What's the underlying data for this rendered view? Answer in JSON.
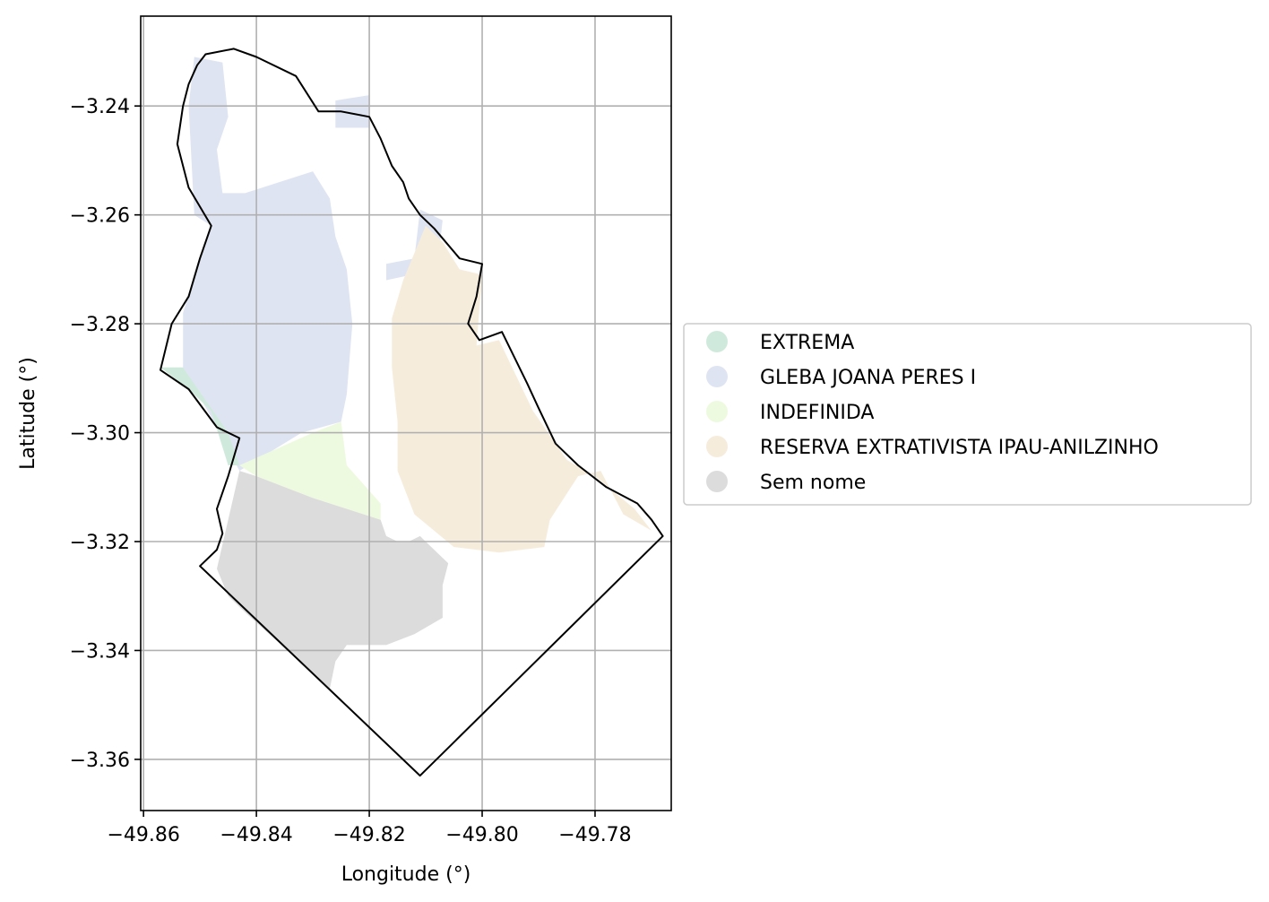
{
  "chart_data": {
    "type": "map",
    "xlabel": "Longitude (°)",
    "ylabel": "Latitude (°)",
    "xlim": [
      -49.8605,
      -49.7665
    ],
    "ylim": [
      -3.3694,
      -3.2235
    ],
    "xticks": [
      -49.86,
      -49.84,
      -49.82,
      -49.8,
      -49.78
    ],
    "xtick_labels": [
      "−49.86",
      "−49.84",
      "−49.82",
      "−49.80",
      "−49.78"
    ],
    "yticks": [
      -3.24,
      -3.26,
      -3.28,
      -3.3,
      -3.32,
      -3.34,
      -3.36
    ],
    "ytick_labels": [
      "−3.24",
      "−3.26",
      "−3.28",
      "−3.30",
      "−3.32",
      "−3.34",
      "−3.36"
    ],
    "grid": true,
    "legend_position": "center-right, outside plot",
    "categories": [
      {
        "name": "EXTREMA",
        "color": "#cfeadc"
      },
      {
        "name": "GLEBA JOANA PERES I",
        "color": "#dfe4f2"
      },
      {
        "name": "INDEFINIDA",
        "color": "#eefae0"
      },
      {
        "name": "RESERVA EXTRATIVISTA IPAU-ANILZINHO",
        "color": "#f6ecdc"
      },
      {
        "name": "Sem nome",
        "color": "#dcdcdc"
      }
    ],
    "regions": [
      {
        "category": "GLEBA JOANA PERES I",
        "coords": [
          [
            -49.851,
            -3.231
          ],
          [
            -49.846,
            -3.232
          ],
          [
            -49.845,
            -3.242
          ],
          [
            -49.847,
            -3.248
          ],
          [
            -49.846,
            -3.256
          ],
          [
            -49.842,
            -3.256
          ],
          [
            -49.83,
            -3.252
          ],
          [
            -49.827,
            -3.257
          ],
          [
            -49.826,
            -3.264
          ],
          [
            -49.824,
            -3.27
          ],
          [
            -49.823,
            -3.28
          ],
          [
            -49.824,
            -3.293
          ],
          [
            -49.825,
            -3.298
          ],
          [
            -49.832,
            -3.3
          ],
          [
            -49.843,
            -3.307
          ],
          [
            -49.847,
            -3.299
          ],
          [
            -49.853,
            -3.288
          ],
          [
            -49.853,
            -3.278
          ],
          [
            -49.85,
            -3.268
          ],
          [
            -49.848,
            -3.262
          ],
          [
            -49.851,
            -3.26
          ],
          [
            -49.852,
            -3.24
          ]
        ]
      },
      {
        "category": "GLEBA JOANA PERES I",
        "coords": [
          [
            -49.826,
            -3.239
          ],
          [
            -49.82,
            -3.238
          ],
          [
            -49.82,
            -3.244
          ],
          [
            -49.826,
            -3.244
          ]
        ]
      },
      {
        "category": "GLEBA JOANA PERES I",
        "coords": [
          [
            -49.811,
            -3.259
          ],
          [
            -49.807,
            -3.261
          ],
          [
            -49.808,
            -3.27
          ],
          [
            -49.817,
            -3.272
          ],
          [
            -49.817,
            -3.269
          ],
          [
            -49.812,
            -3.268
          ]
        ]
      },
      {
        "category": "EXTREMA",
        "coords": [
          [
            -49.857,
            -3.288
          ],
          [
            -49.853,
            -3.288
          ],
          [
            -49.845,
            -3.3
          ],
          [
            -49.843,
            -3.306
          ],
          [
            -49.845,
            -3.306
          ],
          [
            -49.848,
            -3.296
          ],
          [
            -49.852,
            -3.292
          ]
        ]
      },
      {
        "category": "INDEFINIDA",
        "coords": [
          [
            -49.843,
            -3.306
          ],
          [
            -49.83,
            -3.3
          ],
          [
            -49.825,
            -3.298
          ],
          [
            -49.824,
            -3.306
          ],
          [
            -49.818,
            -3.313
          ],
          [
            -49.818,
            -3.316
          ],
          [
            -49.83,
            -3.312
          ],
          [
            -49.84,
            -3.308
          ]
        ]
      },
      {
        "category": "RESERVA EXTRATIVISTA IPAU-ANILZINHO",
        "coords": [
          [
            -49.81,
            -3.262
          ],
          [
            -49.807,
            -3.265
          ],
          [
            -49.804,
            -3.27
          ],
          [
            -49.8,
            -3.271
          ],
          [
            -49.801,
            -3.284
          ],
          [
            -49.797,
            -3.283
          ],
          [
            -49.791,
            -3.296
          ],
          [
            -49.785,
            -3.305
          ],
          [
            -49.78,
            -3.308
          ],
          [
            -49.773,
            -3.314
          ],
          [
            -49.77,
            -3.318
          ],
          [
            -49.775,
            -3.315
          ],
          [
            -49.779,
            -3.307
          ],
          [
            -49.783,
            -3.308
          ],
          [
            -49.788,
            -3.316
          ],
          [
            -49.789,
            -3.321
          ],
          [
            -49.797,
            -3.322
          ],
          [
            -49.805,
            -3.321
          ],
          [
            -49.812,
            -3.315
          ],
          [
            -49.815,
            -3.307
          ],
          [
            -49.815,
            -3.298
          ],
          [
            -49.816,
            -3.288
          ],
          [
            -49.816,
            -3.279
          ],
          [
            -49.814,
            -3.272
          ]
        ]
      },
      {
        "category": "Sem nome",
        "coords": [
          [
            -49.843,
            -3.307
          ],
          [
            -49.845,
            -3.316
          ],
          [
            -49.847,
            -3.325
          ],
          [
            -49.845,
            -3.33
          ],
          [
            -49.842,
            -3.333
          ],
          [
            -49.827,
            -3.347
          ],
          [
            -49.826,
            -3.342
          ],
          [
            -49.824,
            -3.339
          ],
          [
            -49.817,
            -3.339
          ],
          [
            -49.812,
            -3.337
          ],
          [
            -49.807,
            -3.334
          ],
          [
            -49.807,
            -3.328
          ],
          [
            -49.806,
            -3.324
          ],
          [
            -49.809,
            -3.321
          ],
          [
            -49.811,
            -3.319
          ],
          [
            -49.813,
            -3.32
          ],
          [
            -49.815,
            -3.32
          ],
          [
            -49.817,
            -3.319
          ],
          [
            -49.818,
            -3.316
          ],
          [
            -49.83,
            -3.312
          ],
          [
            -49.84,
            -3.308
          ]
        ]
      }
    ],
    "boundary": [
      [
        -49.8505,
        -3.2325
      ],
      [
        -49.849,
        -3.2305
      ],
      [
        -49.844,
        -3.2295
      ],
      [
        -49.84,
        -3.231
      ],
      [
        -49.833,
        -3.2345
      ],
      [
        -49.829,
        -3.241
      ],
      [
        -49.825,
        -3.241
      ],
      [
        -49.82,
        -3.242
      ],
      [
        -49.818,
        -3.246
      ],
      [
        -49.816,
        -3.251
      ],
      [
        -49.814,
        -3.254
      ],
      [
        -49.813,
        -3.257
      ],
      [
        -49.811,
        -3.26
      ],
      [
        -49.8085,
        -3.2625
      ],
      [
        -49.804,
        -3.268
      ],
      [
        -49.8,
        -3.269
      ],
      [
        -49.801,
        -3.275
      ],
      [
        -49.8025,
        -3.28
      ],
      [
        -49.8005,
        -3.283
      ],
      [
        -49.7965,
        -3.2815
      ],
      [
        -49.792,
        -3.291
      ],
      [
        -49.79,
        -3.2955
      ],
      [
        -49.787,
        -3.302
      ],
      [
        -49.783,
        -3.306
      ],
      [
        -49.778,
        -3.31
      ],
      [
        -49.7725,
        -3.313
      ],
      [
        -49.77,
        -3.316
      ],
      [
        -49.768,
        -3.319
      ],
      [
        -49.811,
        -3.363
      ],
      [
        -49.85,
        -3.3245
      ],
      [
        -49.847,
        -3.3215
      ],
      [
        -49.846,
        -3.3185
      ],
      [
        -49.847,
        -3.314
      ],
      [
        -49.845,
        -3.308
      ],
      [
        -49.843,
        -3.301
      ],
      [
        -49.847,
        -3.299
      ],
      [
        -49.852,
        -3.292
      ],
      [
        -49.857,
        -3.2885
      ],
      [
        -49.855,
        -3.28
      ],
      [
        -49.852,
        -3.275
      ],
      [
        -49.85,
        -3.268
      ],
      [
        -49.848,
        -3.262
      ],
      [
        -49.852,
        -3.255
      ],
      [
        -49.854,
        -3.247
      ],
      [
        -49.853,
        -3.24
      ],
      [
        -49.852,
        -3.236
      ]
    ]
  }
}
